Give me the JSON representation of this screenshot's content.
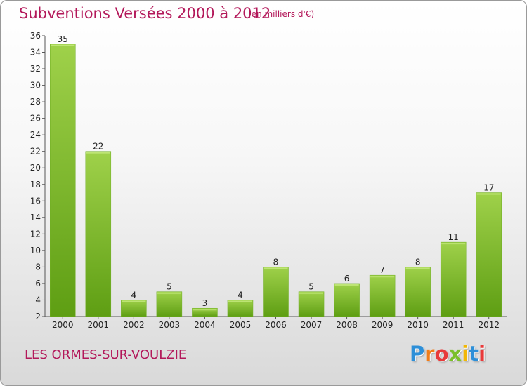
{
  "header": {
    "title": "Subventions Versées 2000 à 2012",
    "unit": "(en milliers d'€)"
  },
  "footer": {
    "place": "LES ORMES-SUR-VOULZIE",
    "logo_letters": [
      "P",
      "r",
      "o",
      "x",
      "i",
      "t",
      "i"
    ],
    "logo_colors": [
      "#2d8fd8",
      "#f07d1a",
      "#e83a3a",
      "#7bbf2a",
      "#f2b705",
      "#2d8fd8",
      "#e83a3a"
    ]
  },
  "chart_data": {
    "type": "bar",
    "title": "Subventions Versées 2000 à 2012",
    "subtitle": "(en milliers d'€)",
    "xlabel": "",
    "ylabel": "",
    "categories": [
      "2000",
      "2001",
      "2002",
      "2003",
      "2004",
      "2005",
      "2006",
      "2007",
      "2008",
      "2009",
      "2010",
      "2011",
      "2012"
    ],
    "values": [
      35,
      22,
      4,
      5,
      3,
      4,
      8,
      5,
      6,
      7,
      8,
      11,
      17
    ],
    "ylim": [
      2,
      36
    ],
    "yticks": [
      2,
      4,
      6,
      8,
      10,
      12,
      14,
      16,
      18,
      20,
      22,
      24,
      26,
      28,
      30,
      32,
      34,
      36
    ],
    "grid": false,
    "legend": "none",
    "bar_color_top": "#9fd14a",
    "bar_color_bottom": "#5e9e13"
  }
}
